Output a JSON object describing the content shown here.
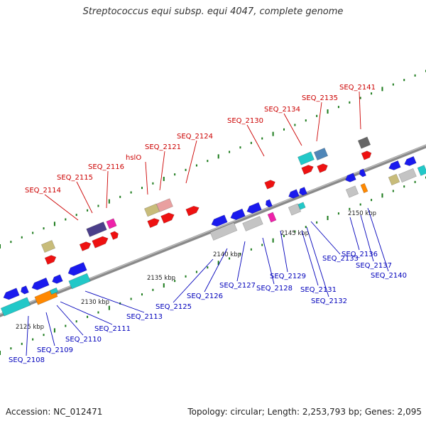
{
  "title": "Streptococcus equi subsp. equi 4047, complete genome",
  "footer": {
    "accession": "Accession: NC_012471",
    "summary": "Topology: circular; Length: 2,253,793 bp; Genes: 2,095"
  },
  "colors": {
    "backbone": "#8a8a8a",
    "label_top": "#cc0000",
    "label_bottom": "#0000bb",
    "forward_gene": "#ee1111",
    "reverse_gene": "#1a1aee",
    "tick": "#1a7a1a"
  },
  "scale_labels": [
    "2125 kbp",
    "2130 kbp",
    "2135 kbp",
    "2140 kbp",
    "2145 kbp",
    "2150 kbp"
  ],
  "top_labels": [
    "SEQ_2114",
    "SEQ_2115",
    "SEQ_2116",
    "hslO",
    "SEQ_2121",
    "SEQ_2124",
    "SEQ_2130",
    "SEQ_2134",
    "SEQ_2135",
    "SEQ_2141"
  ],
  "bottom_labels": [
    "SEQ_2108",
    "SEQ_2109",
    "SEQ_2110",
    "SEQ_2111",
    "SEQ_2113",
    "SEQ_2125",
    "SEQ_2126",
    "SEQ_2127",
    "SEQ_2128",
    "SEQ_2129",
    "SEQ_2131",
    "SEQ_2132",
    "SEQ_2133",
    "SEQ_2136",
    "SEQ_2137",
    "SEQ_2140"
  ]
}
